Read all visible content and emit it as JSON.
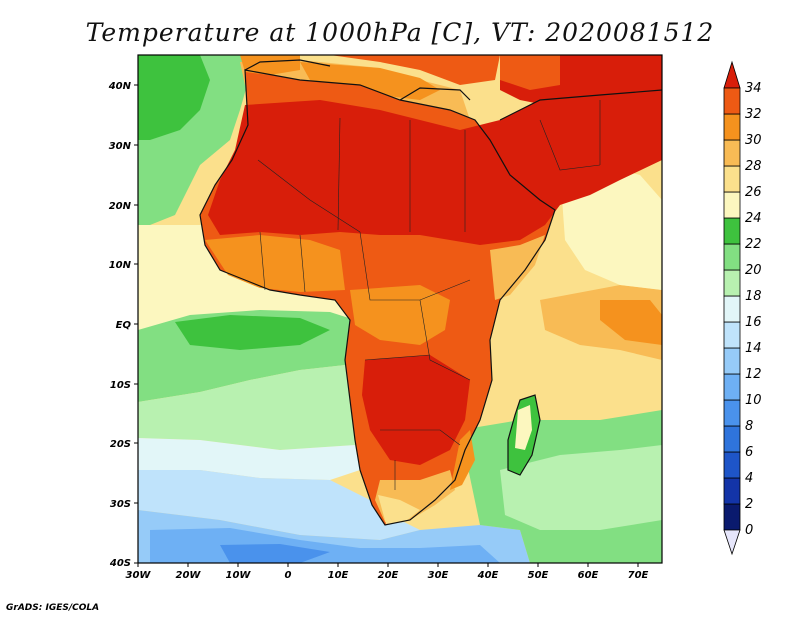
{
  "title": "Temperature at 1000hPa [C], VT: 2020081512",
  "credit": "GrADS: IGES/COLA",
  "map": {
    "lon_range": [
      -30,
      75
    ],
    "lat_range": [
      -40,
      45
    ],
    "x_ticks": [
      "30W",
      "20W",
      "10W",
      "0",
      "10E",
      "20E",
      "30E",
      "40E",
      "50E",
      "60E",
      "70E"
    ],
    "y_ticks": [
      "40N",
      "30N",
      "20N",
      "10N",
      "EQ",
      "10S",
      "20S",
      "30S",
      "40S"
    ]
  },
  "colorbar": {
    "levels": [
      "0",
      "2",
      "4",
      "6",
      "8",
      "10",
      "12",
      "14",
      "16",
      "18",
      "20",
      "22",
      "24",
      "26",
      "28",
      "30",
      "32",
      "34"
    ],
    "colors": [
      "#0a1a6e",
      "#1334a8",
      "#1e55c8",
      "#2f74dc",
      "#4a92ec",
      "#6eb0f4",
      "#96cbf8",
      "#bfe3fb",
      "#e2f6f8",
      "#b8f1b0",
      "#82df82",
      "#3ec23e",
      "#fcf7bf",
      "#fbe08c",
      "#f8bb55",
      "#f5921e",
      "#ee5a14",
      "#d81e0a"
    ],
    "units": "C"
  }
}
